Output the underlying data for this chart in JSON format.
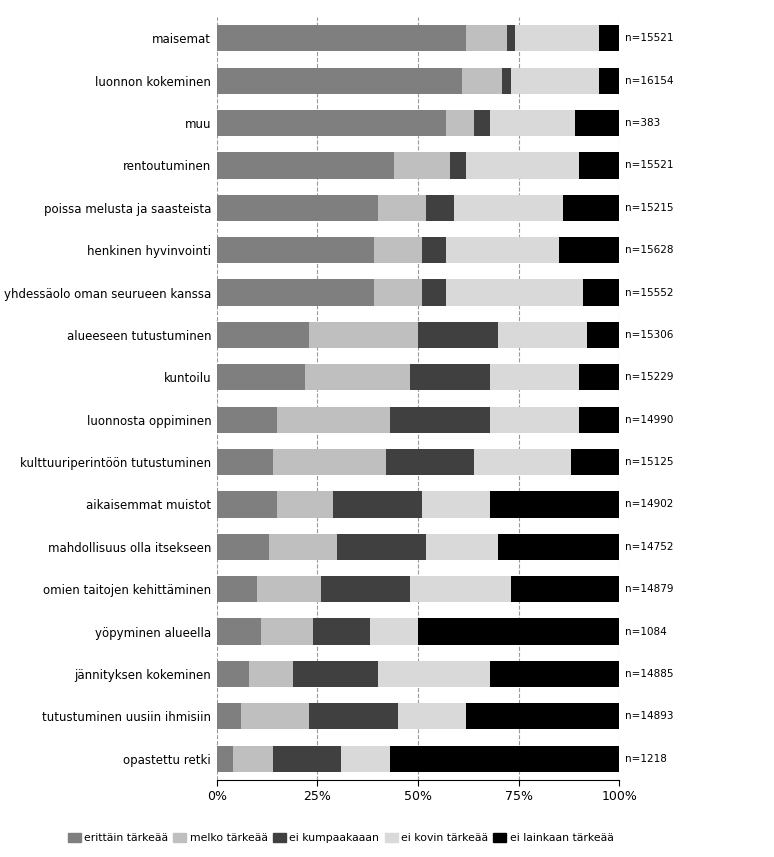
{
  "categories": [
    "maisemat",
    "luonnon kokeminen",
    "muu",
    "rentoutuminen",
    "poissa melusta ja saasteista",
    "henkinen hyvinvointi",
    "yhdessäolo oman seurueen kanssa",
    "alueeseen tutustuminen",
    "kuntoilu",
    "luonnosta oppiminen",
    "kulttuuriperintöön tutustuminen",
    "aikaisemmat muistot",
    "mahdollisuus olla itsekseen",
    "omien taitojen kehittäminen",
    "yöpyminen alueella",
    "jännityksen kokeminen",
    "tutustuminen uusiin ihmisiin",
    "opastettu retki"
  ],
  "n_values": [
    "n=15521",
    "n=16154",
    "n=383",
    "n=15521",
    "n=15215",
    "n=15628",
    "n=15552",
    "n=15306",
    "n=15229",
    "n=14990",
    "n=15125",
    "n=14902",
    "n=14752",
    "n=14879",
    "n=1084",
    "n=14885",
    "n=14893",
    "n=1218"
  ],
  "data": [
    [
      62,
      10,
      2,
      21,
      5
    ],
    [
      61,
      10,
      2,
      22,
      5
    ],
    [
      57,
      7,
      4,
      21,
      11
    ],
    [
      44,
      14,
      4,
      28,
      10
    ],
    [
      40,
      12,
      7,
      27,
      14
    ],
    [
      39,
      12,
      6,
      28,
      15
    ],
    [
      39,
      12,
      6,
      34,
      9
    ],
    [
      23,
      27,
      20,
      22,
      8
    ],
    [
      22,
      26,
      20,
      22,
      10
    ],
    [
      15,
      28,
      25,
      22,
      10
    ],
    [
      14,
      28,
      22,
      24,
      12
    ],
    [
      15,
      14,
      22,
      17,
      32
    ],
    [
      13,
      17,
      22,
      18,
      30
    ],
    [
      10,
      16,
      22,
      25,
      27
    ],
    [
      11,
      13,
      14,
      12,
      50
    ],
    [
      8,
      11,
      21,
      28,
      32
    ],
    [
      6,
      17,
      22,
      17,
      38
    ],
    [
      4,
      10,
      17,
      12,
      57
    ]
  ],
  "colors": [
    "#7f7f7f",
    "#bfbfbf",
    "#404040",
    "#d9d9d9",
    "#000000"
  ],
  "legend_labels": [
    "erittäin tärkeää",
    "melko tärkeää",
    "ei kumpaakaaan",
    "ei kovin tärkeää",
    "ei lainkaan tärkeää"
  ],
  "figsize": [
    7.74,
    8.57
  ],
  "dpi": 100
}
